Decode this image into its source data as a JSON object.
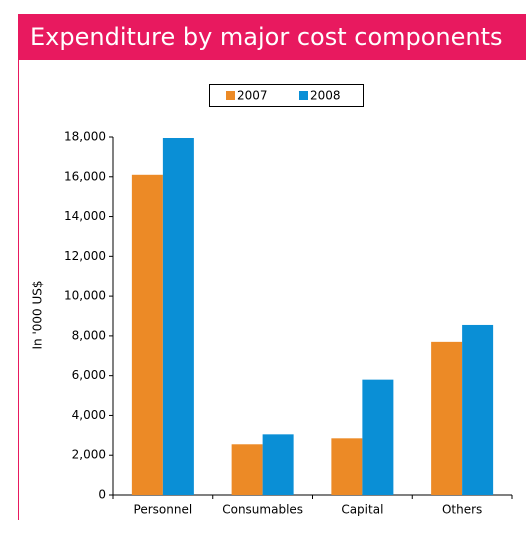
{
  "chart_data": {
    "type": "bar",
    "title": "Expenditure by major cost components",
    "y_label": "In '000 US$",
    "categories": [
      "Personnel",
      "Consumables",
      "Capital",
      "Others"
    ],
    "series": [
      {
        "name": "2007",
        "color": "#ec8a26",
        "values": [
          16100,
          2550,
          2850,
          7700
        ]
      },
      {
        "name": "2008",
        "color": "#0a8fd6",
        "values": [
          17950,
          3050,
          5800,
          8550
        ]
      }
    ],
    "ylim": [
      0,
      18000
    ],
    "yticks": [
      0,
      {
        "value": 2000,
        "label": "2,000"
      },
      {
        "value": 4000,
        "label": "4,000"
      },
      {
        "value": 6000,
        "label": "6,000"
      },
      {
        "value": 8000,
        "label": "8,000"
      },
      {
        "value": 10000,
        "label": "10,000"
      },
      {
        "value": 12000,
        "label": "12,000"
      },
      {
        "value": 14000,
        "label": "14,000"
      },
      {
        "value": 16000,
        "label": "16,000"
      },
      {
        "value": 18000,
        "label": "18,000"
      }
    ],
    "legend": "top"
  }
}
